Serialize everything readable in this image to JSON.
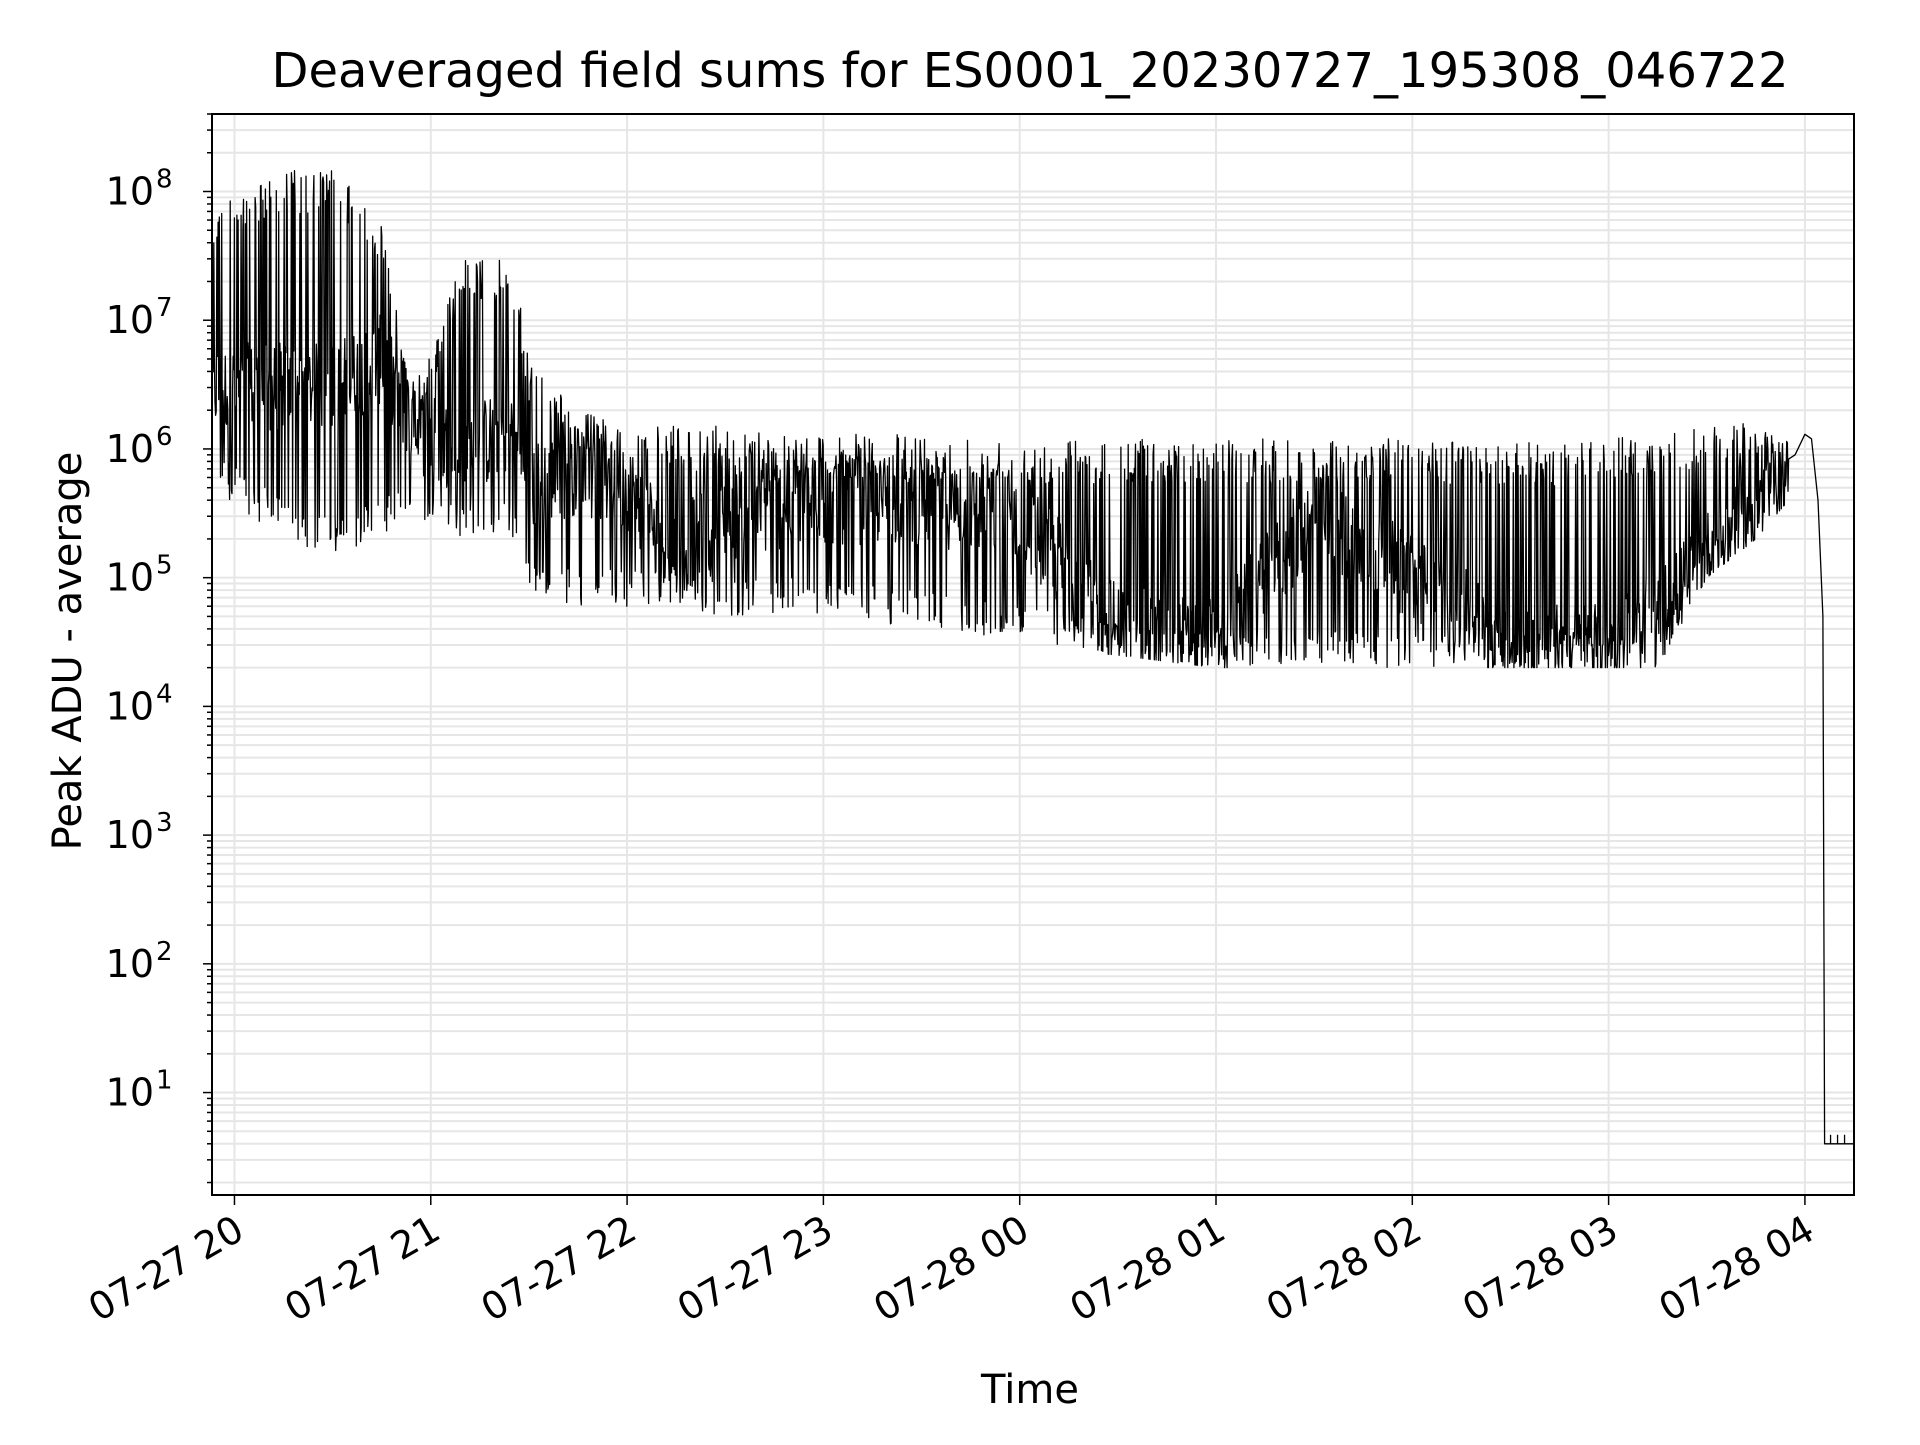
{
  "chart_data": {
    "type": "line",
    "title": "Deaveraged field sums for ES0001_20230727_195308_046722",
    "xlabel": "Time",
    "ylabel": "Peak ADU - average",
    "y_scale": "log",
    "ylim": [
      1.6,
      400000000
    ],
    "xlim": [
      "2023-07-27T19:53:08",
      "2023-07-28T04:15:00"
    ],
    "grid": true,
    "grid_color": "#e6e6e6",
    "line_color": "#000000",
    "x_ticks": [
      {
        "t": "2023-07-27T20:00:00",
        "label": "07-27 20"
      },
      {
        "t": "2023-07-27T21:00:00",
        "label": "07-27 21"
      },
      {
        "t": "2023-07-27T22:00:00",
        "label": "07-27 22"
      },
      {
        "t": "2023-07-27T23:00:00",
        "label": "07-27 23"
      },
      {
        "t": "2023-07-28T00:00:00",
        "label": "07-28 00"
      },
      {
        "t": "2023-07-28T01:00:00",
        "label": "07-28 01"
      },
      {
        "t": "2023-07-28T02:00:00",
        "label": "07-28 02"
      },
      {
        "t": "2023-07-28T03:00:00",
        "label": "07-28 03"
      },
      {
        "t": "2023-07-28T04:00:00",
        "label": "07-28 04"
      }
    ],
    "y_ticks": [
      {
        "value": 10,
        "base": "10",
        "exp": "1"
      },
      {
        "value": 100,
        "base": "10",
        "exp": "2"
      },
      {
        "value": 1000,
        "base": "10",
        "exp": "3"
      },
      {
        "value": 10000,
        "base": "10",
        "exp": "4"
      },
      {
        "value": 100000,
        "base": "10",
        "exp": "5"
      },
      {
        "value": 1000000,
        "base": "10",
        "exp": "6"
      },
      {
        "value": 10000000,
        "base": "10",
        "exp": "7"
      },
      {
        "value": 100000000,
        "base": "10",
        "exp": "8"
      }
    ],
    "series": [
      {
        "style": "spiky_envelope",
        "envelope": [
          {
            "t": "2023-07-27T19:53:08",
            "upper": 80000000,
            "base": 3000000,
            "lower": 500000
          },
          {
            "t": "2023-07-27T20:15:00",
            "upper": 150000000,
            "base": 3000000,
            "lower": 200000
          },
          {
            "t": "2023-07-27T20:30:00",
            "upper": 150000000,
            "base": 3000000,
            "lower": 150000
          },
          {
            "t": "2023-07-27T20:45:00",
            "upper": 60000000,
            "base": 5000000,
            "lower": 200000
          },
          {
            "t": "2023-07-27T20:55:00",
            "upper": 3000000,
            "base": 1500000,
            "lower": 300000
          },
          {
            "t": "2023-07-27T21:10:00",
            "upper": 30000000,
            "base": 900000,
            "lower": 200000
          },
          {
            "t": "2023-07-27T21:25:00",
            "upper": 30000000,
            "base": 1500000,
            "lower": 200000
          },
          {
            "t": "2023-07-27T21:30:00",
            "upper": 5000000,
            "base": 500000,
            "lower": 70000
          },
          {
            "t": "2023-07-27T21:45:00",
            "upper": 2000000,
            "base": 700000,
            "lower": 60000
          },
          {
            "t": "2023-07-27T22:00:00",
            "upper": 1500000,
            "base": 500000,
            "lower": 60000
          },
          {
            "t": "2023-07-27T22:15:00",
            "upper": 1500000,
            "base": 150000,
            "lower": 60000
          },
          {
            "t": "2023-07-27T22:30:00",
            "upper": 1500000,
            "base": 300000,
            "lower": 50000
          },
          {
            "t": "2023-07-27T23:00:00",
            "upper": 1300000,
            "base": 400000,
            "lower": 50000
          },
          {
            "t": "2023-07-27T23:30:00",
            "upper": 1300000,
            "base": 400000,
            "lower": 40000
          },
          {
            "t": "2023-07-28T00:00:00",
            "upper": 1200000,
            "base": 300000,
            "lower": 30000
          },
          {
            "t": "2023-07-28T00:30:00",
            "upper": 1200000,
            "base": 40000,
            "lower": 25000
          },
          {
            "t": "2023-07-28T01:00:00",
            "upper": 1200000,
            "base": 30000,
            "lower": 20000
          },
          {
            "t": "2023-07-28T01:30:00",
            "upper": 1200000,
            "base": 300000,
            "lower": 20000
          },
          {
            "t": "2023-07-28T02:00:00",
            "upper": 1200000,
            "base": 100000,
            "lower": 20000
          },
          {
            "t": "2023-07-28T02:30:00",
            "upper": 1100000,
            "base": 30000,
            "lower": 20000
          },
          {
            "t": "2023-07-28T03:00:00",
            "upper": 1200000,
            "base": 30000,
            "lower": 20000
          },
          {
            "t": "2023-07-28T03:15:00",
            "upper": 1300000,
            "base": 50000,
            "lower": 20000
          },
          {
            "t": "2023-07-28T03:30:00",
            "upper": 1500000,
            "base": 150000,
            "lower": 100000
          },
          {
            "t": "2023-07-28T03:45:00",
            "upper": 1600000,
            "base": 300000,
            "lower": 200000
          },
          {
            "t": "2023-07-28T03:55:00",
            "upper": 1300000,
            "base": 600000,
            "lower": 400000
          }
        ],
        "tail": [
          {
            "t": "2023-07-28T03:57:00",
            "value": 900000
          },
          {
            "t": "2023-07-28T04:00:00",
            "value": 1300000
          },
          {
            "t": "2023-07-28T04:02:00",
            "value": 1200000
          },
          {
            "t": "2023-07-28T04:04:00",
            "value": 400000
          },
          {
            "t": "2023-07-28T04:05:30",
            "value": 50000
          },
          {
            "t": "2023-07-28T04:06:00",
            "value": 4
          },
          {
            "t": "2023-07-28T04:15:00",
            "value": 4
          }
        ]
      }
    ]
  }
}
